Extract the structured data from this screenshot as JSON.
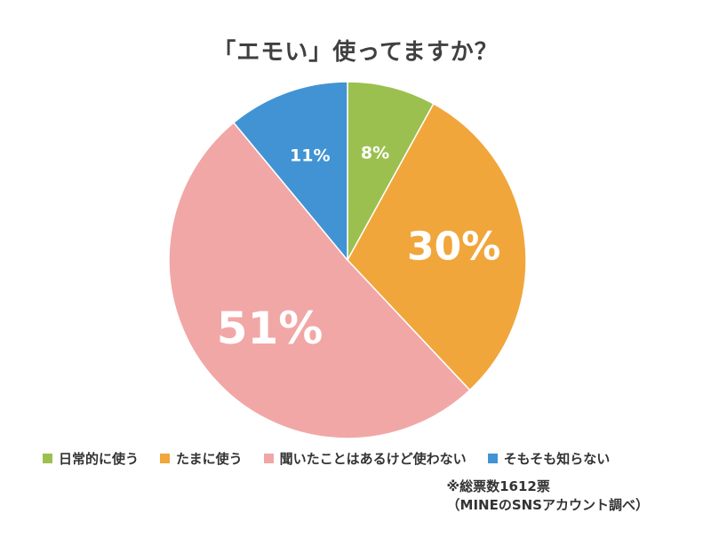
{
  "chart_data": {
    "type": "pie",
    "title": "「エモい」使ってますか？",
    "slices": [
      {
        "name": "日常的に使う",
        "value": 8,
        "label": "8%",
        "color": "#9bc04f"
      },
      {
        "name": "たまに使う",
        "value": 30,
        "label": "30%",
        "color": "#f1a63b"
      },
      {
        "name": "聞いたことはあるけど使わない",
        "value": 51,
        "label": "51%",
        "color": "#f1a7a6"
      },
      {
        "name": "そもそも知らない",
        "value": 11,
        "label": "11%",
        "color": "#4293d3"
      }
    ],
    "legend_position": "bottom",
    "start_angle": "top",
    "direction": "clockwise"
  },
  "notes": {
    "line1": "※総票数1612票",
    "line2": "（MINEのSNSアカウント調べ）"
  }
}
